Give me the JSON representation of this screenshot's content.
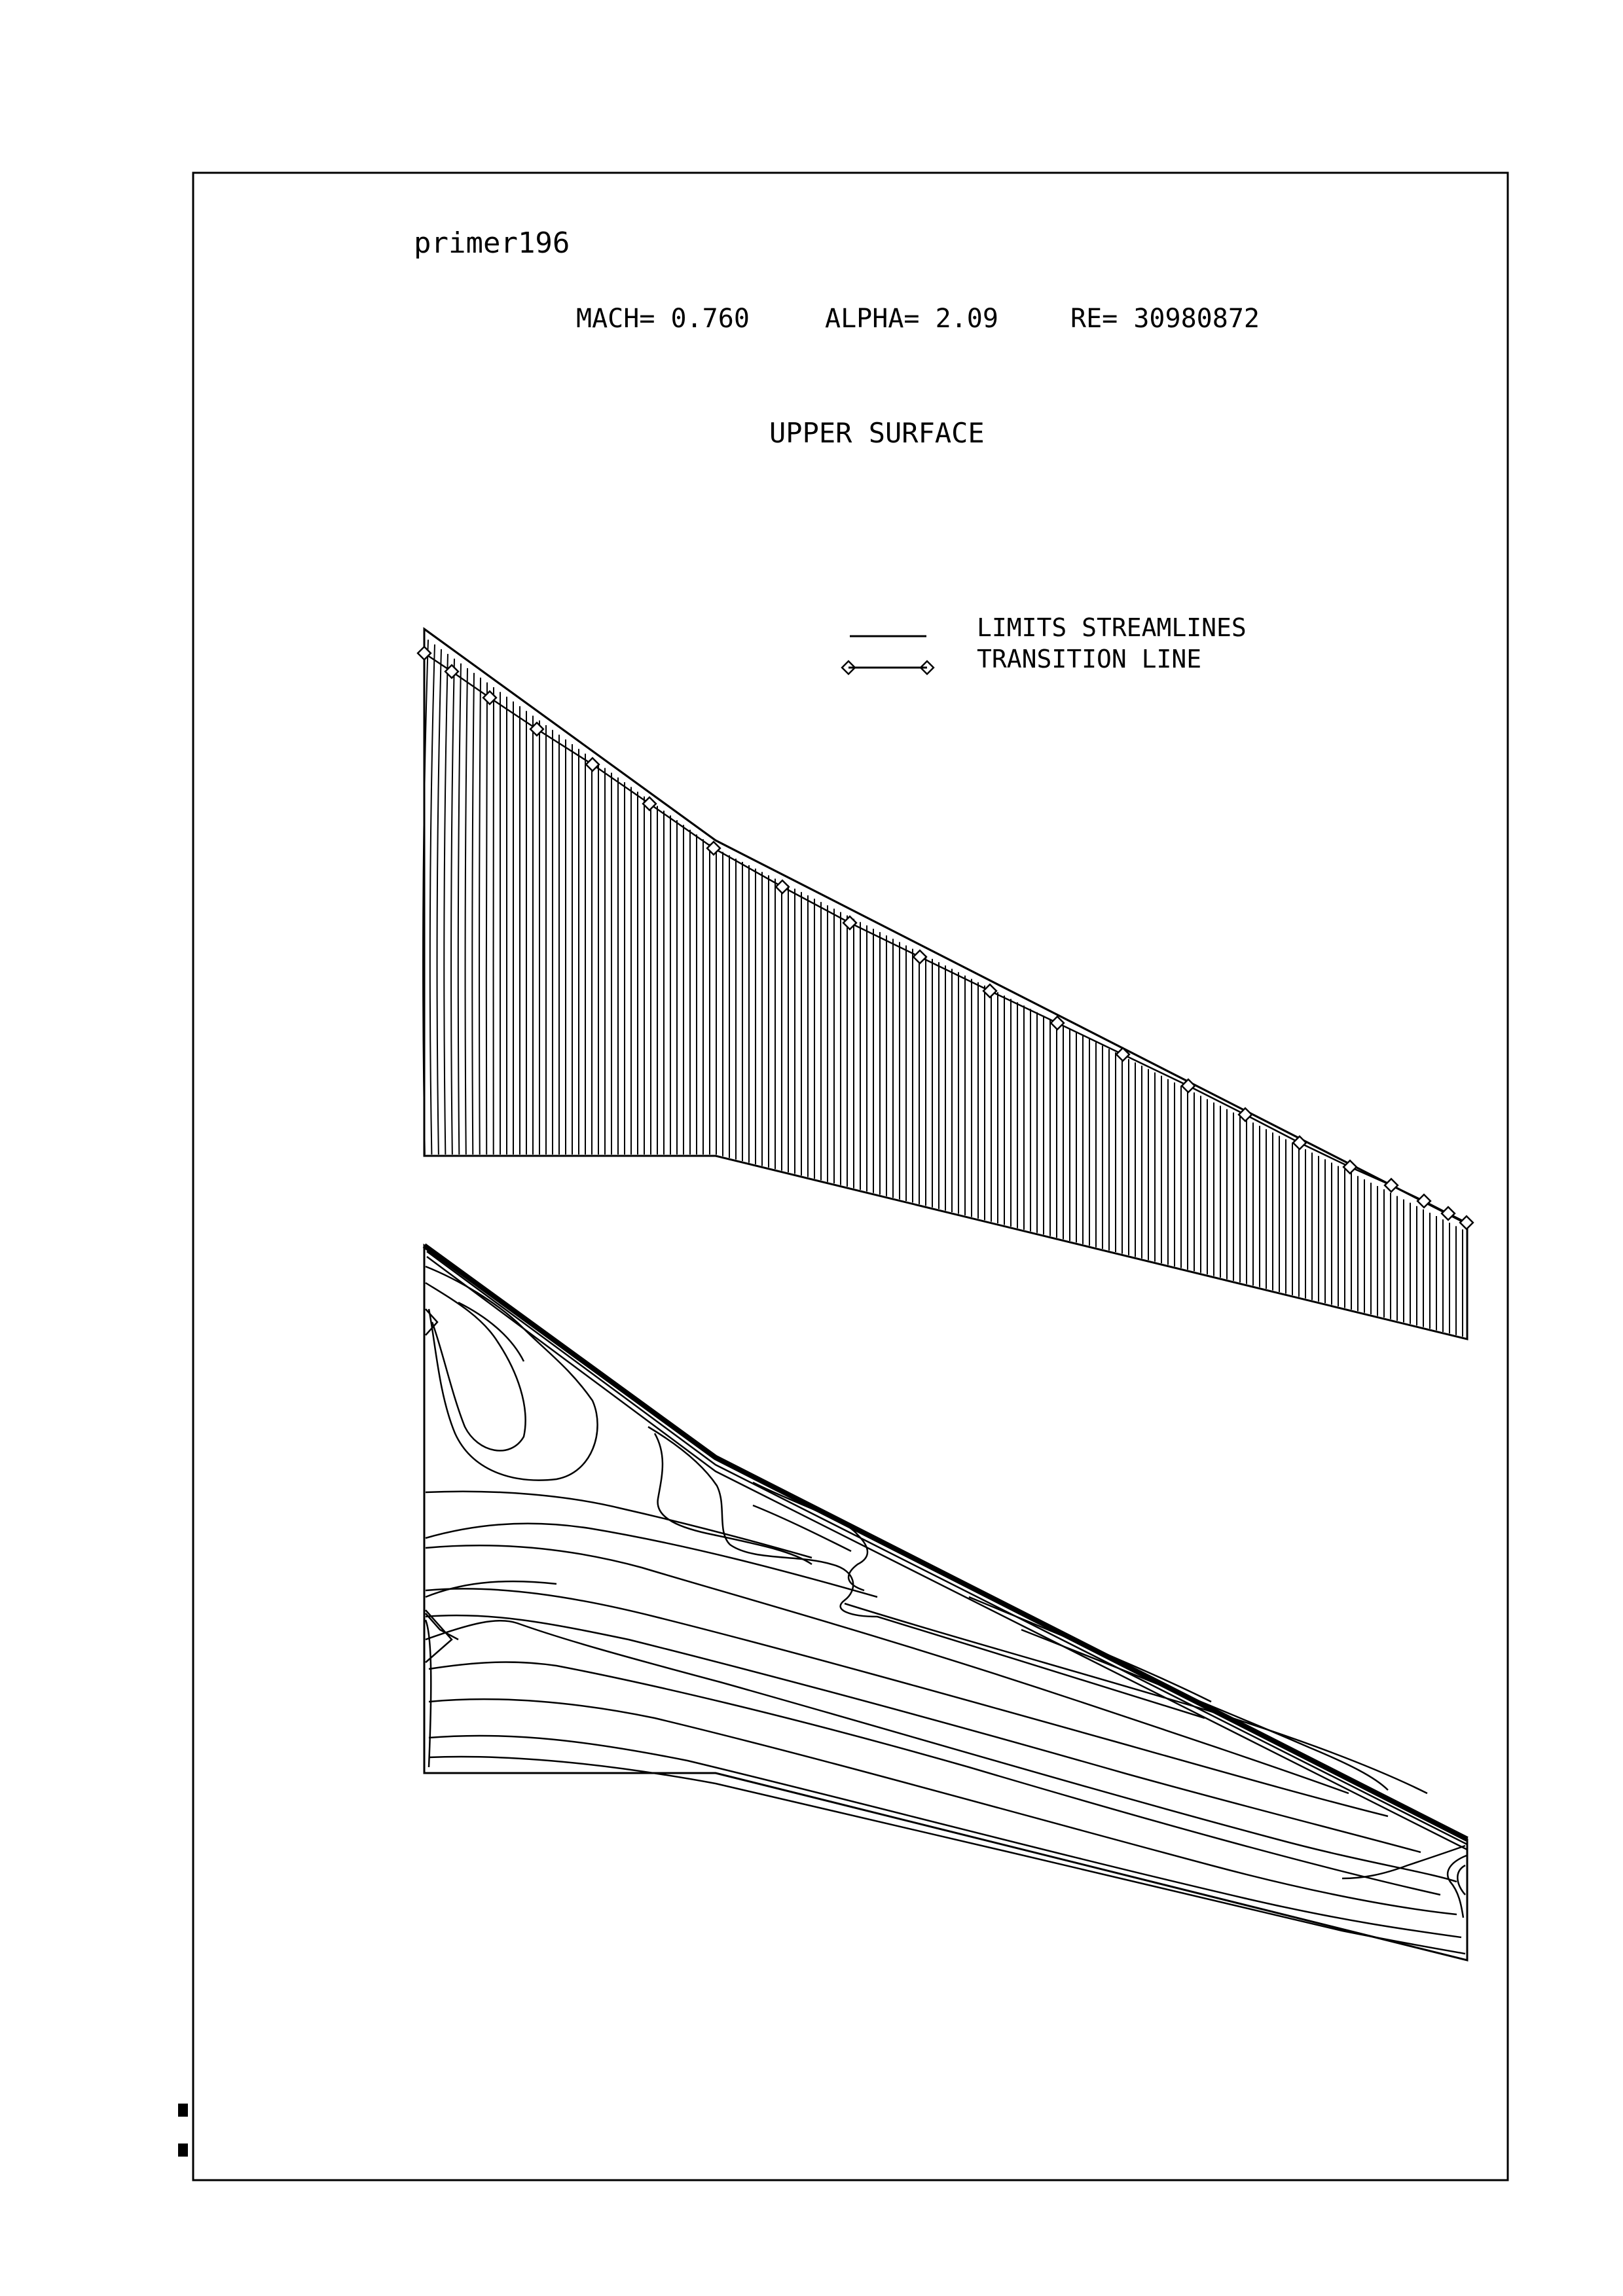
{
  "run_name": "primer196",
  "conditions": {
    "mach": "MACH= 0.760",
    "alpha": "ALPHA= 2.09",
    "re": "RE= 30980872"
  },
  "surface_title": "UPPER SURFACE",
  "legend": {
    "streamlines_label": "LIMITS STREAMLINES",
    "transition_label": "TRANSITION LINE"
  },
  "colors": {
    "ink": "#000000",
    "paper": "#ffffff"
  }
}
